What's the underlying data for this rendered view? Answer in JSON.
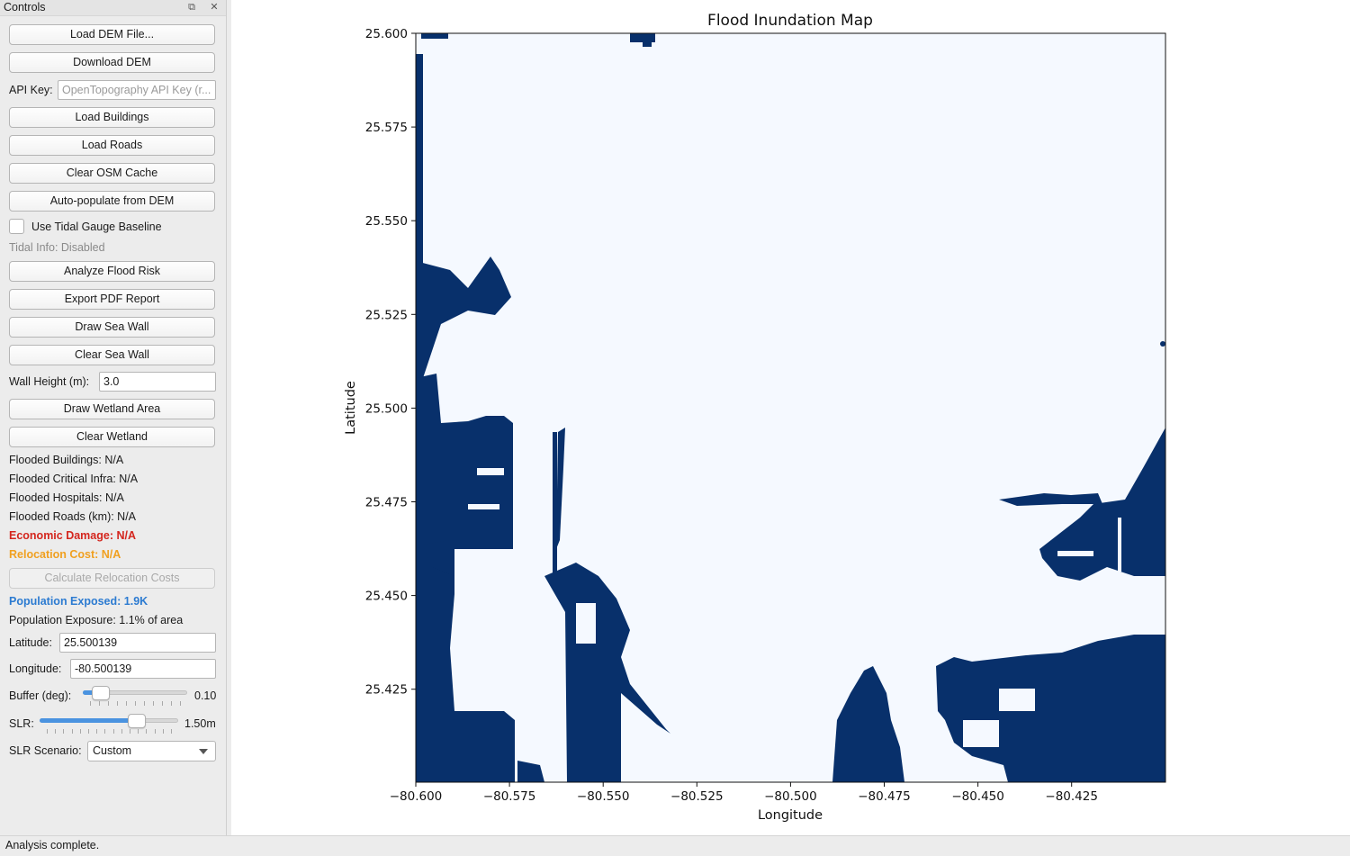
{
  "dock": {
    "title": "Controls",
    "buttons": {
      "load_dem": "Load DEM File...",
      "download_dem": "Download DEM",
      "load_buildings": "Load Buildings",
      "load_roads": "Load Roads",
      "clear_osm": "Clear OSM Cache",
      "auto_populate": "Auto-populate from DEM",
      "analyze": "Analyze Flood Risk",
      "export_pdf": "Export PDF Report",
      "draw_wall": "Draw Sea Wall",
      "clear_wall": "Clear Sea Wall",
      "draw_wetland": "Draw Wetland Area",
      "clear_wetland": "Clear Wetland",
      "calc_relocation": "Calculate Relocation Costs"
    },
    "api_key": {
      "label": "API Key:",
      "placeholder": "OpenTopography API Key (r..."
    },
    "tidal": {
      "checkbox_label": "Use Tidal Gauge Baseline",
      "checked": false,
      "info": "Tidal Info: Disabled"
    },
    "wall_height": {
      "label": "Wall Height (m):",
      "value": "3.0"
    },
    "stats": {
      "buildings": "Flooded Buildings: N/A",
      "critical": "Flooded Critical Infra: N/A",
      "hospitals": "Flooded Hospitals: N/A",
      "roads": "Flooded Roads (km): N/A",
      "economic": "Economic Damage: N/A",
      "relocation": "Relocation Cost: N/A",
      "pop_exposed": "Population Exposed: 1.9K",
      "pop_exposure": "Population Exposure: 1.1% of area"
    },
    "latitude": {
      "label": "Latitude:",
      "value": "25.500139"
    },
    "longitude": {
      "label": "Longitude:",
      "value": "-80.500139"
    },
    "buffer": {
      "label": "Buffer (deg):",
      "value": "0.10",
      "fraction": 0.1
    },
    "slr": {
      "label": "SLR:",
      "value": "1.50m",
      "fraction": 0.73
    },
    "slr_scenario": {
      "label": "SLR Scenario:",
      "value": "Custom"
    }
  },
  "plot": {
    "title": "Flood Inundation Map",
    "xlabel": "Longitude",
    "ylabel": "Latitude",
    "xticks": [
      "−80.600",
      "−80.575",
      "−80.550",
      "−80.525",
      "−80.500",
      "−80.475",
      "−80.450",
      "−80.425"
    ],
    "yticks": [
      "25.600",
      "25.575",
      "25.550",
      "25.525",
      "25.500",
      "25.475",
      "25.450",
      "25.425"
    ],
    "colors": {
      "flooded": "#08306b",
      "dry": "#f5f9ff"
    }
  },
  "status": "Analysis complete."
}
